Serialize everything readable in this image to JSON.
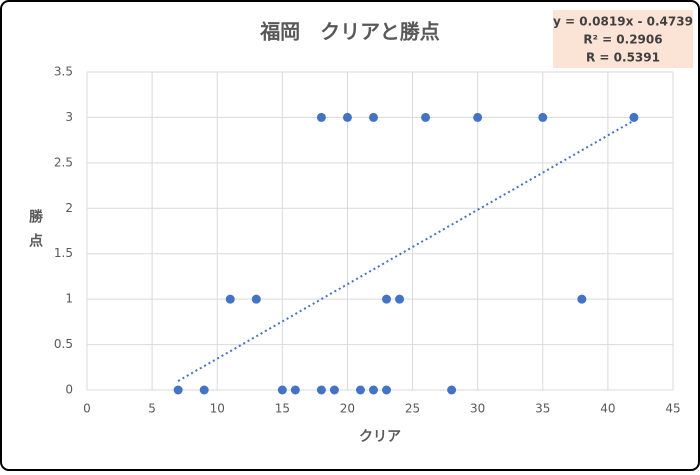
{
  "chart_data": {
    "type": "scatter",
    "title": "福岡　クリアと勝点",
    "x_label": "クリア",
    "y_label": "勝点",
    "series": [
      {
        "color": "#4472c4",
        "x": [
          7,
          9,
          11,
          13,
          15,
          16,
          18,
          18,
          19,
          20,
          21,
          22,
          22,
          23,
          23,
          24,
          26,
          28,
          30,
          35,
          38,
          42
        ],
        "values": [
          0,
          0,
          1,
          1,
          0,
          0,
          3,
          0,
          0,
          3,
          0,
          3,
          0,
          1,
          0,
          1,
          3,
          0,
          3,
          3,
          1,
          3
        ]
      }
    ],
    "trendline": {
      "x": [
        7,
        42
      ],
      "values": [
        0.0994,
        2.9659
      ],
      "color": "#4472c4",
      "style": "dotted"
    },
    "annotations": [
      "y = 0.0819x - 0.4739",
      "R² = 0.2906",
      "R = 0.5391"
    ],
    "xlim": [
      0,
      45
    ],
    "xticks": [
      0,
      5,
      10,
      15,
      20,
      25,
      30,
      35,
      40,
      45
    ],
    "ylim": [
      0,
      3.5
    ],
    "yticks": [
      0,
      0.5,
      1,
      1.5,
      2,
      2.5,
      3,
      3.5
    ],
    "grid": true
  }
}
